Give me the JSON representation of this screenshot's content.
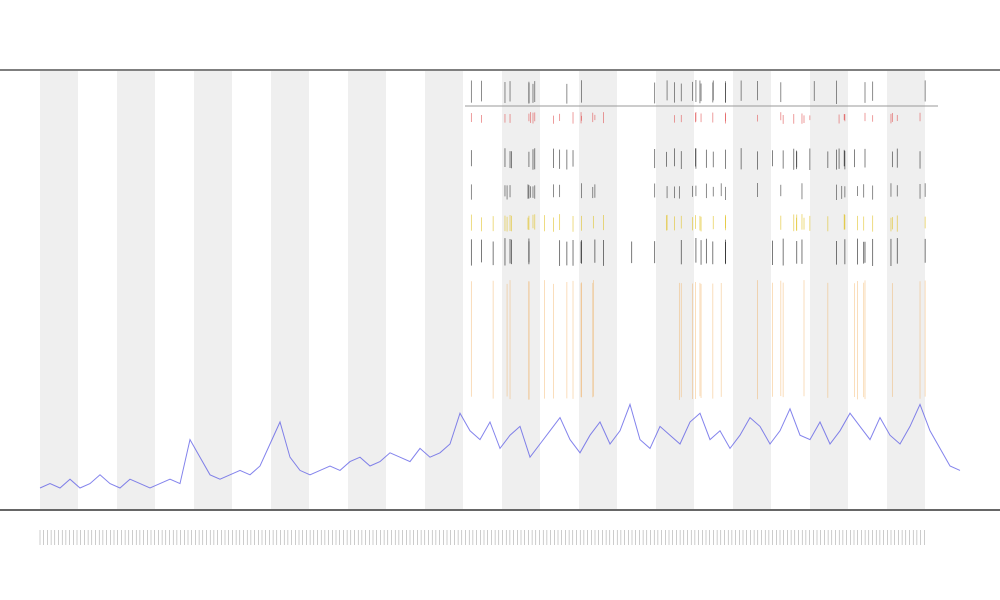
{
  "chart_data": {
    "type": "line",
    "color": "#5a5ae6",
    "ylim": [
      0,
      100
    ],
    "values": [
      5,
      6,
      5,
      7,
      5,
      6,
      8,
      6,
      5,
      7,
      6,
      5,
      6,
      7,
      6,
      16,
      12,
      8,
      7,
      8,
      9,
      8,
      10,
      15,
      20,
      12,
      9,
      8,
      9,
      10,
      9,
      11,
      12,
      10,
      11,
      13,
      12,
      11,
      14,
      12,
      13,
      15,
      22,
      18,
      16,
      20,
      14,
      17,
      19,
      12,
      15,
      18,
      21,
      16,
      13,
      17,
      20,
      15,
      18,
      24,
      16,
      14,
      19,
      17,
      15,
      20,
      22,
      16,
      18,
      14,
      17,
      21,
      19,
      15,
      18,
      23,
      17,
      16,
      20,
      15,
      18,
      22,
      19,
      16,
      21,
      17,
      15,
      19,
      24,
      18,
      14,
      10,
      9
    ]
  }
}
